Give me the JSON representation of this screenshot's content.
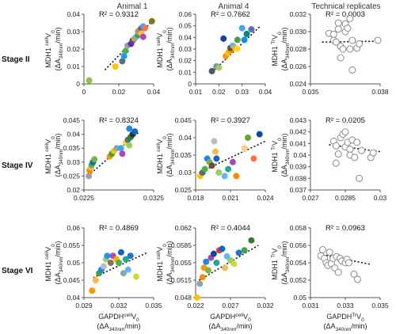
{
  "column_titles": [
    "Animal 1",
    "Animal 4",
    "Technical replicates"
  ],
  "row_labels": [
    "Stage II",
    "Stage IV",
    "Stage VI"
  ],
  "y_labels": {
    "animal": {
      "line1": "MDH1",
      "sup": "cell",
      "tail": "V",
      "sub": "0",
      "line2a": "(ΔA",
      "line2sub": "340nm",
      "line2b": "/min)"
    },
    "technical": {
      "line1": "MDH1",
      "sup": "Tr",
      "tail": "V",
      "sub": "0",
      "line2a": "(ΔA",
      "line2sub": "340nm",
      "line2b": "/min)"
    }
  },
  "x_labels": {
    "animal": {
      "line1": "GAPDH",
      "sup": "cell",
      "tail": "V",
      "sub": "0",
      "line2a": "(ΔA",
      "line2sub": "340nm",
      "line2b": "/min)"
    },
    "technical": {
      "line1": "GAPDH",
      "sup": "Tr",
      "tail": "V",
      "sub": "0",
      "line2a": "(ΔA",
      "line2sub": "340nm",
      "line2b": "/min)"
    }
  },
  "chart_data": [
    {
      "type": "scatter",
      "row": "Stage II",
      "column": "Animal 1",
      "r2": "R² = 0.9312",
      "xlim": [
        0,
        0.04
      ],
      "ylim": [
        0,
        0.04
      ],
      "xticks": [
        "0",
        "0.02",
        "0.04"
      ],
      "yticks": [
        "0",
        "0.01",
        "0.02",
        "0.03",
        "0.04"
      ],
      "trend": [
        [
          0.012,
          0.008
        ],
        [
          0.04,
          0.037
        ]
      ],
      "points": [
        [
          0.003,
          0.002,
          "#8bc34a"
        ],
        [
          0.018,
          0.01,
          "#ffc107"
        ],
        [
          0.022,
          0.013,
          "#546e7a"
        ],
        [
          0.023,
          0.016,
          "#2196f3"
        ],
        [
          0.024,
          0.019,
          "#4caf50"
        ],
        [
          0.025,
          0.022,
          "#90a4ae"
        ],
        [
          0.027,
          0.023,
          "#7b1fa2"
        ],
        [
          0.028,
          0.025,
          "#1565c0"
        ],
        [
          0.029,
          0.026,
          "#ff9800"
        ],
        [
          0.03,
          0.027,
          "#64b5f6"
        ],
        [
          0.031,
          0.028,
          "#43a047"
        ],
        [
          0.031,
          0.03,
          "#9e9e9e"
        ],
        [
          0.032,
          0.031,
          "#f57c00"
        ],
        [
          0.033,
          0.032,
          "#1976d2"
        ],
        [
          0.033,
          0.029,
          "#ffb74d"
        ],
        [
          0.034,
          0.033,
          "#42a5f5"
        ],
        [
          0.034,
          0.027,
          "#ab47bc"
        ],
        [
          0.035,
          0.032,
          "#ff7043"
        ],
        [
          0.039,
          0.036,
          "#827717"
        ]
      ]
    },
    {
      "type": "scatter",
      "row": "Stage II",
      "column": "Animal 4",
      "r2": "R² = 0.7662",
      "xlim": [
        0.01,
        0.04
      ],
      "ylim": [
        0,
        0.06
      ],
      "xticks": [
        "0.01",
        "0.02",
        "0.03",
        "0.04"
      ],
      "yticks": [
        "0",
        "0.01",
        "0.02",
        "0.03",
        "0.04",
        "0.05",
        "0.06"
      ],
      "trend": [
        [
          0.017,
          0.01
        ],
        [
          0.038,
          0.05
        ]
      ],
      "points": [
        [
          0.017,
          0.011,
          "#455a64"
        ],
        [
          0.019,
          0.015,
          "#78909c"
        ],
        [
          0.02,
          0.014,
          "#9ccc65"
        ],
        [
          0.022,
          0.039,
          "#0d47a1"
        ],
        [
          0.023,
          0.024,
          "#ff9800"
        ],
        [
          0.024,
          0.027,
          "#ffc107"
        ],
        [
          0.025,
          0.029,
          "#fb8c00"
        ],
        [
          0.025,
          0.031,
          "#6d4c41"
        ],
        [
          0.026,
          0.033,
          "#64b5f6"
        ],
        [
          0.027,
          0.031,
          "#ffb300"
        ],
        [
          0.028,
          0.03,
          "#fdd835"
        ],
        [
          0.028,
          0.038,
          "#43a047"
        ],
        [
          0.03,
          0.048,
          "#42a5f5"
        ],
        [
          0.031,
          0.038,
          "#1e88e5"
        ],
        [
          0.032,
          0.043,
          "#00897b"
        ],
        [
          0.034,
          0.047,
          "#5c6bc0"
        ]
      ]
    },
    {
      "type": "scatter",
      "row": "Stage II",
      "column": "Technical replicates",
      "r2": "R² = 0.0003",
      "xlim": [
        0.035,
        0.038
      ],
      "ylim": [
        0.024,
        0.032
      ],
      "xticks": [
        "0.035",
        "0.038"
      ],
      "yticks": [
        "0.024",
        "0.026",
        "0.028",
        "0.030",
        "0.032"
      ],
      "trend": [
        [
          0.0355,
          0.0288
        ],
        [
          0.038,
          0.0289
        ]
      ],
      "points": [
        [
          0.0358,
          0.0298
        ],
        [
          0.036,
          0.0297
        ],
        [
          0.036,
          0.029
        ],
        [
          0.0361,
          0.0288
        ],
        [
          0.0362,
          0.0303
        ],
        [
          0.0362,
          0.031
        ],
        [
          0.0363,
          0.0283
        ],
        [
          0.0363,
          0.027
        ],
        [
          0.0364,
          0.028
        ],
        [
          0.0365,
          0.03
        ],
        [
          0.0365,
          0.0309
        ],
        [
          0.0366,
          0.0304
        ],
        [
          0.0367,
          0.0315
        ],
        [
          0.0367,
          0.028
        ],
        [
          0.0368,
          0.029
        ],
        [
          0.0368,
          0.0256
        ],
        [
          0.037,
          0.0281
        ],
        [
          0.0371,
          0.0286
        ],
        [
          0.0379,
          0.029
        ]
      ]
    },
    {
      "type": "scatter",
      "row": "Stage IV",
      "column": "Animal 1",
      "r2": "R² = 0.8324",
      "xlim": [
        0.0225,
        0.0325
      ],
      "ylim": [
        0.02,
        0.045
      ],
      "xticks": [
        "0.0225",
        "0.0325"
      ],
      "yticks": [
        "0.02",
        "0.025",
        "0.03",
        "0.035",
        "0.04",
        "0.045"
      ],
      "trend": [
        [
          0.0235,
          0.026
        ],
        [
          0.0305,
          0.041
        ]
      ],
      "points": [
        [
          0.0232,
          0.025,
          "#9e9e9e"
        ],
        [
          0.0233,
          0.027,
          "#fb8c00"
        ],
        [
          0.0235,
          0.028,
          "#ffb74d"
        ],
        [
          0.0236,
          0.029,
          "#4caf50"
        ],
        [
          0.0238,
          0.03,
          "#1565c0"
        ],
        [
          0.024,
          0.031,
          "#7cb342"
        ],
        [
          0.0262,
          0.032,
          "#ff9800"
        ],
        [
          0.0265,
          0.033,
          "#43a047"
        ],
        [
          0.0268,
          0.034,
          "#ffc107"
        ],
        [
          0.0272,
          0.035,
          "#90a4ae"
        ],
        [
          0.0278,
          0.035,
          "#42a5f5"
        ],
        [
          0.028,
          0.033,
          "#ab47bc"
        ],
        [
          0.0285,
          0.037,
          "#fdd835"
        ],
        [
          0.0288,
          0.038,
          "#546e7a"
        ],
        [
          0.029,
          0.042,
          "#1e88e5"
        ],
        [
          0.0292,
          0.039,
          "#2e7d32"
        ],
        [
          0.0295,
          0.04,
          "#263238"
        ],
        [
          0.0298,
          0.041,
          "#1565c0"
        ],
        [
          0.029,
          0.036,
          "#9ccc65"
        ]
      ]
    },
    {
      "type": "scatter",
      "row": "Stage IV",
      "column": "Animal 4",
      "r2": "R² = 0.3927",
      "xlim": [
        0.018,
        0.024
      ],
      "ylim": [
        0.025,
        0.045
      ],
      "xticks": [
        "0.018",
        "0.021",
        "0.024"
      ],
      "yticks": [
        "0.025",
        "0.03",
        "0.035",
        "0.04",
        "0.045"
      ],
      "trend": [
        [
          0.0183,
          0.03
        ],
        [
          0.024,
          0.039
        ]
      ],
      "points": [
        [
          0.0184,
          0.029,
          "#ffc107"
        ],
        [
          0.0186,
          0.03,
          "#546e7a"
        ],
        [
          0.0188,
          0.031,
          "#4caf50"
        ],
        [
          0.019,
          0.034,
          "#1e88e5"
        ],
        [
          0.0192,
          0.033,
          "#7cb342"
        ],
        [
          0.0194,
          0.032,
          "#6d4c41"
        ],
        [
          0.0196,
          0.039,
          "#bdbdbd"
        ],
        [
          0.0197,
          0.036,
          "#ffb74d"
        ],
        [
          0.0198,
          0.034,
          "#1565c0"
        ],
        [
          0.02,
          0.03,
          "#9ccc65"
        ],
        [
          0.0205,
          0.029,
          "#64b5f6"
        ],
        [
          0.0208,
          0.031,
          "#26a69a"
        ],
        [
          0.0212,
          0.033,
          "#ab47bc"
        ],
        [
          0.0215,
          0.029,
          "#fb8c00"
        ],
        [
          0.0222,
          0.037,
          "#ffcc80"
        ],
        [
          0.0225,
          0.04,
          "#689f38"
        ],
        [
          0.023,
          0.034,
          "#ff7043"
        ],
        [
          0.0235,
          0.041,
          "#0d47a1"
        ]
      ]
    },
    {
      "type": "scatter",
      "row": "Stage IV",
      "column": "Technical replicates",
      "r2": "R² = 0.0205",
      "xlim": [
        0.027,
        0.03
      ],
      "ylim": [
        0.037,
        0.043
      ],
      "xticks": [
        "0.027",
        "0.0285",
        "0.03"
      ],
      "yticks": [
        "0.037",
        "0.038",
        "0.039",
        "0.04",
        "0.041",
        "0.042",
        "0.043"
      ],
      "trend": [
        [
          0.0278,
          0.0409
        ],
        [
          0.03,
          0.0403
        ]
      ],
      "points": [
        [
          0.028,
          0.0412
        ],
        [
          0.0281,
          0.0408
        ],
        [
          0.0281,
          0.0393
        ],
        [
          0.0282,
          0.0401
        ],
        [
          0.0283,
          0.0415
        ],
        [
          0.0284,
          0.0418
        ],
        [
          0.0285,
          0.0407
        ],
        [
          0.0285,
          0.042
        ],
        [
          0.0286,
          0.0411
        ],
        [
          0.0287,
          0.0405
        ],
        [
          0.0287,
          0.04
        ],
        [
          0.0288,
          0.0413
        ],
        [
          0.0289,
          0.0398
        ],
        [
          0.029,
          0.0411
        ],
        [
          0.0291,
          0.038
        ],
        [
          0.0292,
          0.0404
        ],
        [
          0.0296,
          0.0398
        ],
        [
          0.0297,
          0.0402
        ]
      ]
    },
    {
      "type": "scatter",
      "row": "Stage VI",
      "column": "Animal 1",
      "r2": "R² = 0.4869",
      "xlim": [
        0.029,
        0.035
      ],
      "ylim": [
        0.04,
        0.06
      ],
      "xticks": [
        "0.029",
        "0.032",
        "0.035"
      ],
      "yticks": [
        "0.04",
        "0.045",
        "0.05",
        "0.055",
        "0.06"
      ],
      "trend": [
        [
          0.0298,
          0.0457
        ],
        [
          0.0345,
          0.053
        ]
      ],
      "points": [
        [
          0.0297,
          0.042,
          "#ff9800"
        ],
        [
          0.03,
          0.045,
          "#ffb74d"
        ],
        [
          0.0303,
          0.047,
          "#43a047"
        ],
        [
          0.0305,
          0.048,
          "#1e88e5"
        ],
        [
          0.0307,
          0.049,
          "#bdbdbd"
        ],
        [
          0.0309,
          0.051,
          "#9ccc65"
        ],
        [
          0.031,
          0.052,
          "#2196f3"
        ],
        [
          0.0313,
          0.05,
          "#8d6e63"
        ],
        [
          0.0315,
          0.052,
          "#ab47bc"
        ],
        [
          0.0318,
          0.051,
          "#ffb300"
        ],
        [
          0.032,
          0.05,
          "#4caf50"
        ],
        [
          0.0322,
          0.053,
          "#1565c0"
        ],
        [
          0.0324,
          0.047,
          "#90a4ae"
        ],
        [
          0.0326,
          0.051,
          "#26a69a"
        ],
        [
          0.0328,
          0.048,
          "#64b5f6"
        ],
        [
          0.033,
          0.052,
          "#1976d2"
        ],
        [
          0.0335,
          0.046,
          "#cddc39"
        ]
      ]
    },
    {
      "type": "scatter",
      "row": "Stage VI",
      "column": "Animal 4",
      "r2": "R² = 0.4044",
      "xlim": [
        0.022,
        0.032
      ],
      "ylim": [
        0.048,
        0.062
      ],
      "xticks": [
        "0.022",
        "0.027",
        "0.032"
      ],
      "yticks": [
        "0.048",
        "0.0515",
        "0.055",
        "0.0585",
        "0.062"
      ],
      "trend": [
        [
          0.0225,
          0.0515
        ],
        [
          0.031,
          0.0585
        ]
      ],
      "points": [
        [
          0.0222,
          0.048,
          "#ffc107"
        ],
        [
          0.0226,
          0.0508,
          "#90a4ae"
        ],
        [
          0.023,
          0.0521,
          "#fb8c00"
        ],
        [
          0.0232,
          0.054,
          "#ff9800"
        ],
        [
          0.0235,
          0.0552,
          "#1e88e5"
        ],
        [
          0.0238,
          0.0535,
          "#7cb342"
        ],
        [
          0.0242,
          0.056,
          "#ab47bc"
        ],
        [
          0.0246,
          0.0568,
          "#0d47a1"
        ],
        [
          0.025,
          0.055,
          "#26a69a"
        ],
        [
          0.0254,
          0.0575,
          "#e53935"
        ],
        [
          0.0258,
          0.0578,
          "#1565c0"
        ],
        [
          0.0262,
          0.054,
          "#ffb74d"
        ],
        [
          0.0265,
          0.0563,
          "#64b5f6"
        ],
        [
          0.027,
          0.0555,
          "#9ccc65"
        ],
        [
          0.0275,
          0.0548,
          "#cddc39"
        ],
        [
          0.0282,
          0.057,
          "#1976d2"
        ],
        [
          0.029,
          0.0575,
          "#43a047"
        ],
        [
          0.03,
          0.0595,
          "#2e7d32"
        ]
      ]
    },
    {
      "type": "scatter",
      "row": "Stage VI",
      "column": "Technical replicates",
      "r2": "R² = 0.0963",
      "xlim": [
        0.031,
        0.035
      ],
      "ylim": [
        0.05,
        0.058
      ],
      "xticks": [
        "0.031",
        "0.033",
        "0.035"
      ],
      "yticks": [
        "0.05",
        "0.052",
        "0.054",
        "0.056",
        "0.058"
      ],
      "trend": [
        [
          0.0315,
          0.055
        ],
        [
          0.0345,
          0.0538
        ]
      ],
      "points": [
        [
          0.0316,
          0.0548
        ],
        [
          0.0317,
          0.0555
        ],
        [
          0.0318,
          0.0545
        ],
        [
          0.0319,
          0.054
        ],
        [
          0.032,
          0.0537
        ],
        [
          0.0321,
          0.0552
        ],
        [
          0.0322,
          0.0539
        ],
        [
          0.0323,
          0.0545
        ],
        [
          0.0324,
          0.0534
        ],
        [
          0.0325,
          0.0547
        ],
        [
          0.0326,
          0.0529
        ],
        [
          0.0327,
          0.0545
        ],
        [
          0.0328,
          0.0542
        ],
        [
          0.033,
          0.054
        ],
        [
          0.0331,
          0.0544
        ],
        [
          0.0332,
          0.054
        ],
        [
          0.0335,
          0.0527
        ],
        [
          0.0337,
          0.0521
        ]
      ]
    }
  ]
}
